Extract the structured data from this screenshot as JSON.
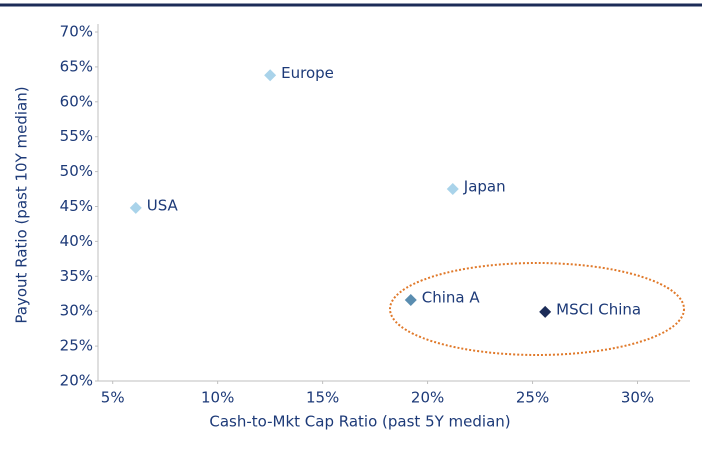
{
  "chart_data": {
    "type": "scatter",
    "xlabel": "Cash-to-Mkt Cap Ratio (past 5Y median)",
    "ylabel": "Payout Ratio (past 10Y median)",
    "xlim": [
      4.3,
      32.5
    ],
    "ylim": [
      20,
      70
    ],
    "xticks": [
      {
        "value": 5,
        "label": "5%"
      },
      {
        "value": 10,
        "label": "10%"
      },
      {
        "value": 15,
        "label": "15%"
      },
      {
        "value": 20,
        "label": "20%"
      },
      {
        "value": 25,
        "label": "25%"
      },
      {
        "value": 30,
        "label": "30%"
      }
    ],
    "yticks": [
      {
        "value": 20,
        "label": "20%"
      },
      {
        "value": 25,
        "label": "25%"
      },
      {
        "value": 30,
        "label": "30%"
      },
      {
        "value": 35,
        "label": "35%"
      },
      {
        "value": 40,
        "label": "40%"
      },
      {
        "value": 45,
        "label": "45%"
      },
      {
        "value": 50,
        "label": "50%"
      },
      {
        "value": 55,
        "label": "55%"
      },
      {
        "value": 60,
        "label": "60%"
      },
      {
        "value": 65,
        "label": "65%"
      },
      {
        "value": 70,
        "label": "70%"
      }
    ],
    "points": [
      {
        "name": "Europe",
        "x": 12.5,
        "y": 63.8,
        "color": "#a9d3ea"
      },
      {
        "name": "USA",
        "x": 6.1,
        "y": 44.8,
        "color": "#a9d3ea"
      },
      {
        "name": "Japan",
        "x": 21.2,
        "y": 47.5,
        "color": "#a9d3ea"
      },
      {
        "name": "China A",
        "x": 19.2,
        "y": 31.6,
        "color": "#5a8db0"
      },
      {
        "name": "MSCI China",
        "x": 25.6,
        "y": 29.9,
        "color": "#1c2c58"
      }
    ]
  }
}
